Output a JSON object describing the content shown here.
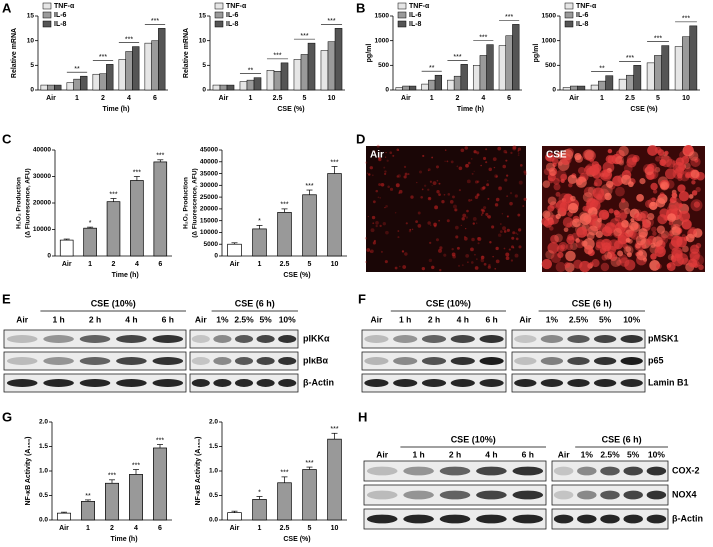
{
  "panel_labels": [
    "A",
    "B",
    "C",
    "D",
    "E",
    "F",
    "G",
    "H"
  ],
  "chart_data": [
    {
      "type": "bar",
      "ylabel": "Relative mRNA",
      "xlabel": "Time (h)",
      "categories": [
        "Air",
        "1",
        "2",
        "4",
        "6"
      ],
      "series": [
        {
          "name": "TNF-α",
          "color": "#e6e6e6",
          "values": [
            1,
            1.5,
            3.2,
            6.2,
            9.5
          ]
        },
        {
          "name": "IL-6",
          "color": "#9a9a9a",
          "values": [
            1,
            2.2,
            3.3,
            7.8,
            10
          ]
        },
        {
          "name": "IL-8",
          "color": "#555555",
          "values": [
            1,
            2.8,
            5.2,
            8.8,
            12.5
          ]
        }
      ],
      "ylim": [
        0,
        15
      ],
      "yticks": [
        0,
        5,
        10,
        15
      ],
      "significance": [
        null,
        "**",
        "***",
        "***",
        "***"
      ],
      "legend": "upper left"
    },
    {
      "type": "bar",
      "ylabel": "Relative mRNA",
      "xlabel": "CSE (%)",
      "categories": [
        "Air",
        "1",
        "2.5",
        "5",
        "10"
      ],
      "series": [
        {
          "name": "TNF-α",
          "color": "#e6e6e6",
          "values": [
            1,
            1.7,
            4,
            6.2,
            8
          ]
        },
        {
          "name": "IL-6",
          "color": "#9a9a9a",
          "values": [
            1,
            2,
            3.8,
            7.2,
            9.8
          ]
        },
        {
          "name": "IL-8",
          "color": "#555555",
          "values": [
            1,
            2.5,
            5.5,
            9.5,
            12.5
          ]
        }
      ],
      "ylim": [
        0,
        15
      ],
      "yticks": [
        0,
        5,
        10,
        15
      ],
      "significance": [
        null,
        "**",
        "***",
        "***",
        "***"
      ],
      "legend": "upper left"
    },
    {
      "type": "bar",
      "ylabel": "pg/ml",
      "xlabel": "Time (h)",
      "categories": [
        "Air",
        "1",
        "2",
        "4",
        "6"
      ],
      "series": [
        {
          "name": "TNF-α",
          "color": "#e6e6e6",
          "values": [
            50,
            120,
            200,
            500,
            900
          ]
        },
        {
          "name": "IL-6",
          "color": "#9a9a9a",
          "values": [
            80,
            200,
            280,
            700,
            1100
          ]
        },
        {
          "name": "IL-8",
          "color": "#555555",
          "values": [
            80,
            300,
            520,
            920,
            1330
          ]
        }
      ],
      "ylim": [
        0,
        1500
      ],
      "yticks": [
        0,
        500,
        1000,
        1500
      ],
      "significance": [
        null,
        "**",
        "***",
        "***",
        "***"
      ],
      "legend": "upper left"
    },
    {
      "type": "bar",
      "ylabel": "pg/ml",
      "xlabel": "CSE (%)",
      "categories": [
        "Air",
        "1",
        "2.5",
        "5",
        "10"
      ],
      "series": [
        {
          "name": "TNF-α",
          "color": "#e6e6e6",
          "values": [
            50,
            100,
            220,
            550,
            880
          ]
        },
        {
          "name": "IL-6",
          "color": "#9a9a9a",
          "values": [
            80,
            180,
            300,
            700,
            1080
          ]
        },
        {
          "name": "IL-8",
          "color": "#555555",
          "values": [
            80,
            290,
            500,
            900,
            1300
          ]
        }
      ],
      "ylim": [
        0,
        1500
      ],
      "yticks": [
        0,
        500,
        1000,
        1500
      ],
      "significance": [
        null,
        "**",
        "***",
        "***",
        "***"
      ],
      "legend": "upper left"
    },
    {
      "type": "bar",
      "ylabel": [
        "H₂O₂ Production",
        "(Δ Fluorescence, AFU)"
      ],
      "xlabel": "Time (h)",
      "categories": [
        "Air",
        "1",
        "2",
        "4",
        "6"
      ],
      "values": [
        6000,
        10500,
        20500,
        28500,
        35500
      ],
      "errors": [
        400,
        400,
        1200,
        1500,
        800
      ],
      "colors": [
        "#ffffff",
        "#999999",
        "#999999",
        "#999999",
        "#999999"
      ],
      "ylim": [
        0,
        40000
      ],
      "yticks": [
        0,
        10000,
        20000,
        30000,
        40000
      ],
      "significance": [
        null,
        "*",
        "***",
        "***",
        "***"
      ]
    },
    {
      "type": "bar",
      "ylabel": [
        "H₂O₂ Production",
        "(Δ Fluorescence, AFU)"
      ],
      "xlabel": "CSE (%)",
      "categories": [
        "Air",
        "1",
        "2.5",
        "5",
        "10"
      ],
      "values": [
        5000,
        11500,
        18500,
        26000,
        35000
      ],
      "errors": [
        600,
        1500,
        1500,
        2000,
        3000
      ],
      "colors": [
        "#ffffff",
        "#999999",
        "#999999",
        "#999999",
        "#999999"
      ],
      "ylim": [
        0,
        45000
      ],
      "yticks": [
        0,
        5000,
        10000,
        15000,
        20000,
        25000,
        30000,
        35000,
        40000,
        45000
      ],
      "significance": [
        null,
        "*",
        "***",
        "***",
        "***"
      ]
    },
    {
      "type": "bar",
      "ylabel": "NF-κB Activity (A₄₅₀)",
      "xlabel": "Time (h)",
      "categories": [
        "Air",
        "1",
        "2",
        "4",
        "6"
      ],
      "values": [
        0.14,
        0.38,
        0.75,
        0.93,
        1.47
      ],
      "errors": [
        0.02,
        0.03,
        0.07,
        0.1,
        0.07
      ],
      "colors": [
        "#ffffff",
        "#999999",
        "#999999",
        "#999999",
        "#999999"
      ],
      "ylim": [
        0,
        2
      ],
      "yticks": [
        {
          "value": 0,
          "label": "0.0"
        },
        {
          "value": 0.5,
          "label": "0.5"
        },
        {
          "value": 1,
          "label": "1.0"
        },
        {
          "value": 1.5,
          "label": "1.5"
        },
        {
          "value": 2,
          "label": "2.0"
        }
      ],
      "significance": [
        null,
        "**",
        "***",
        "***",
        "***"
      ]
    },
    {
      "type": "bar",
      "ylabel": "NF-κB Activity (A₄₅₀)",
      "xlabel": "CSE (%)",
      "categories": [
        "Air",
        "1",
        "2.5",
        "5",
        "10"
      ],
      "values": [
        0.15,
        0.42,
        0.76,
        1.03,
        1.65
      ],
      "errors": [
        0.03,
        0.06,
        0.12,
        0.05,
        0.12
      ],
      "colors": [
        "#ffffff",
        "#999999",
        "#999999",
        "#999999",
        "#999999"
      ],
      "ylim": [
        0,
        2
      ],
      "yticks": [
        {
          "value": 0,
          "label": "0.0"
        },
        {
          "value": 0.5,
          "label": "0.5"
        },
        {
          "value": 1,
          "label": "1.0"
        },
        {
          "value": 1.5,
          "label": "1.5"
        },
        {
          "value": 2,
          "label": "2.0"
        }
      ],
      "significance": [
        null,
        "*",
        "***",
        "***",
        "***"
      ]
    }
  ],
  "microscopy": [
    "Air",
    "CSE"
  ],
  "blots": [
    {
      "groups": [
        {
          "header": "CSE (10%)",
          "lanes": [
            "Air",
            "1 h",
            "2 h",
            "4 h",
            "6 h"
          ]
        },
        {
          "header": "CSE (6 h)",
          "lanes": [
            "Air",
            "1%",
            "2.5%",
            "5%",
            "10%"
          ]
        }
      ],
      "rows": [
        "pIKKα",
        "pIκBα",
        "β-Actin"
      ]
    },
    {
      "groups": [
        {
          "header": "CSE (10%)",
          "lanes": [
            "Air",
            "1 h",
            "2 h",
            "4 h",
            "6 h"
          ]
        },
        {
          "header": "CSE (6 h)",
          "lanes": [
            "Air",
            "1%",
            "2.5%",
            "5%",
            "10%"
          ]
        }
      ],
      "rows": [
        "pMSK1",
        "p65",
        "Lamin B1"
      ]
    },
    {
      "groups": [
        {
          "header": "CSE (10%)",
          "lanes": [
            "Air",
            "1 h",
            "2 h",
            "4 h",
            "6 h"
          ]
        },
        {
          "header": "CSE (6 h)",
          "lanes": [
            "Air",
            "1%",
            "2.5%",
            "5%",
            "10%"
          ]
        }
      ],
      "rows": [
        "COX-2",
        "NOX4",
        "β-Actin"
      ]
    }
  ]
}
